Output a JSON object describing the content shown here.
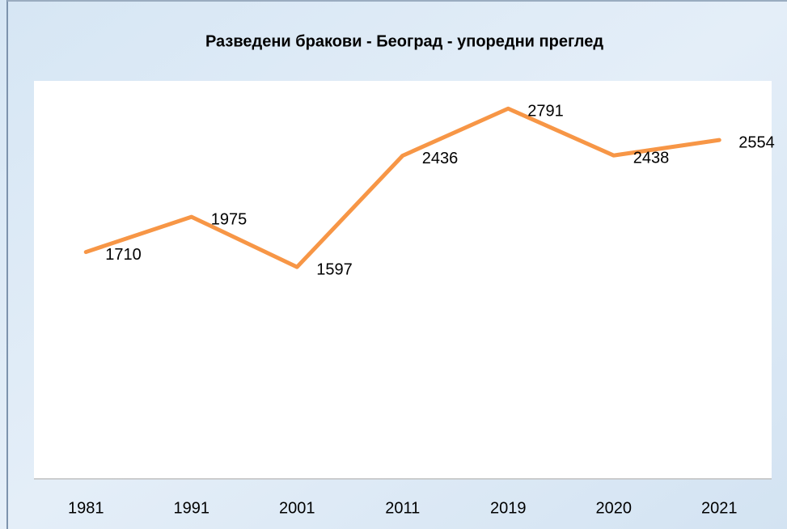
{
  "chart_data": {
    "type": "line",
    "title": "Разведени бракови - Београд - упоредни преглед",
    "categories": [
      "1981",
      "1991",
      "2001",
      "2011",
      "2019",
      "2020",
      "2021"
    ],
    "series": [
      {
        "name": "Разведени бракови",
        "color": "#f79646",
        "values": [
          1710,
          1975,
          1597,
          2436,
          2791,
          2438,
          2554
        ]
      }
    ],
    "ylim": [
      0,
      3000
    ]
  }
}
